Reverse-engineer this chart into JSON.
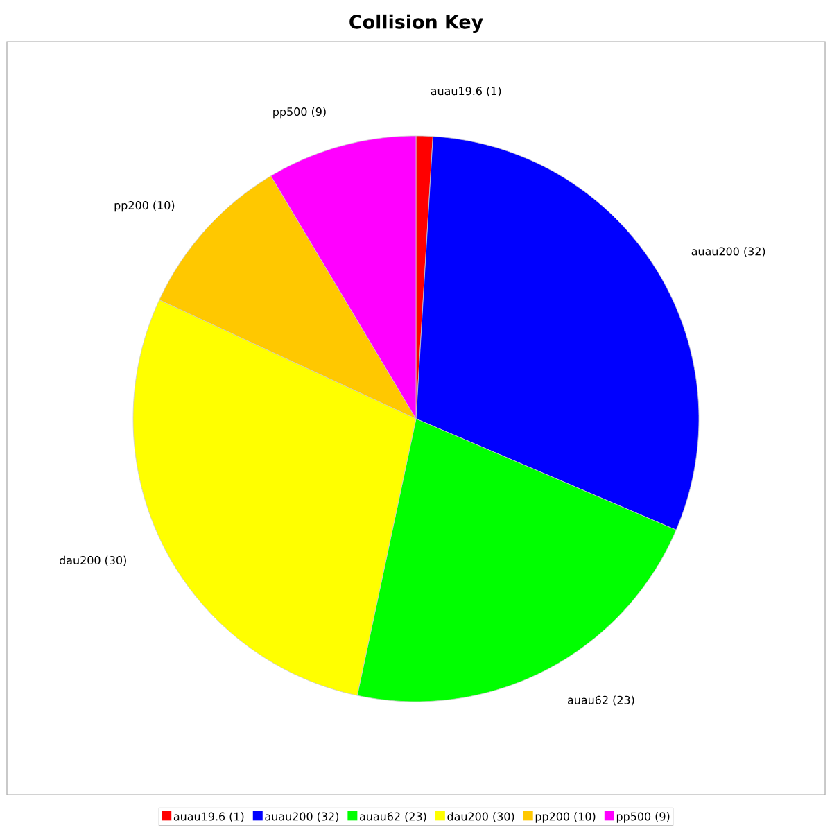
{
  "chart_data": {
    "type": "pie",
    "title": "Collision Key",
    "categories": [
      "auau19.6 (1)",
      "auau200 (32)",
      "auau62 (23)",
      "dau200 (30)",
      "pp200 (10)",
      "pp500 (9)"
    ],
    "values": [
      1,
      32,
      23,
      30,
      10,
      9
    ],
    "colors": [
      "#ff0000",
      "#0000ff",
      "#00ff00",
      "#ffff00",
      "#ffc800",
      "#ff00ff"
    ],
    "legend": "bottom"
  }
}
